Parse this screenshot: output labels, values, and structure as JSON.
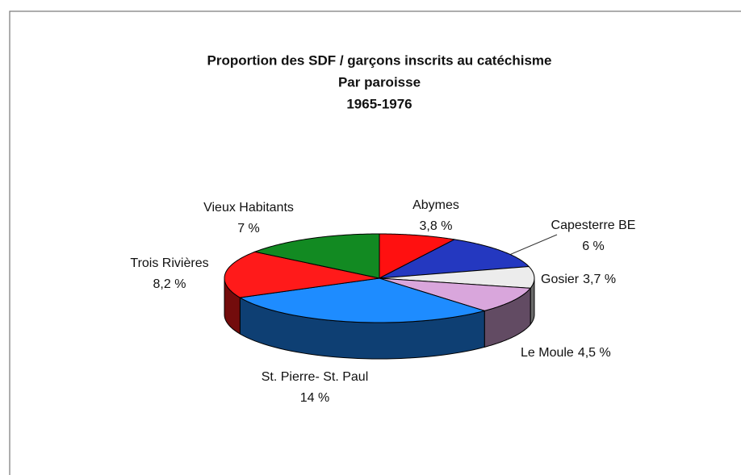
{
  "chart_data": {
    "type": "pie",
    "title": "Proportion des SDF / garçons inscrits au catéchisme",
    "subtitle": "Par paroisse",
    "period": "1965-1976",
    "categories": [
      "Abymes",
      "Capesterre BE",
      "Gosier",
      "Le Moule",
      "St. Pierre- St. Paul",
      "Trois Rivières",
      "Vieux Habitants"
    ],
    "values": [
      3.8,
      6,
      3.7,
      4.5,
      14,
      8.2,
      7
    ],
    "value_labels": [
      "3,8 %",
      "6 %",
      "3,7 %",
      "4,5 %",
      "14 %",
      "8,2 %",
      "7 %"
    ],
    "colors": [
      "#ff1010",
      "#2438c0",
      "#ececec",
      "#d9a6dc",
      "#1e8cff",
      "#ff1a1a",
      "#128a22"
    ]
  }
}
